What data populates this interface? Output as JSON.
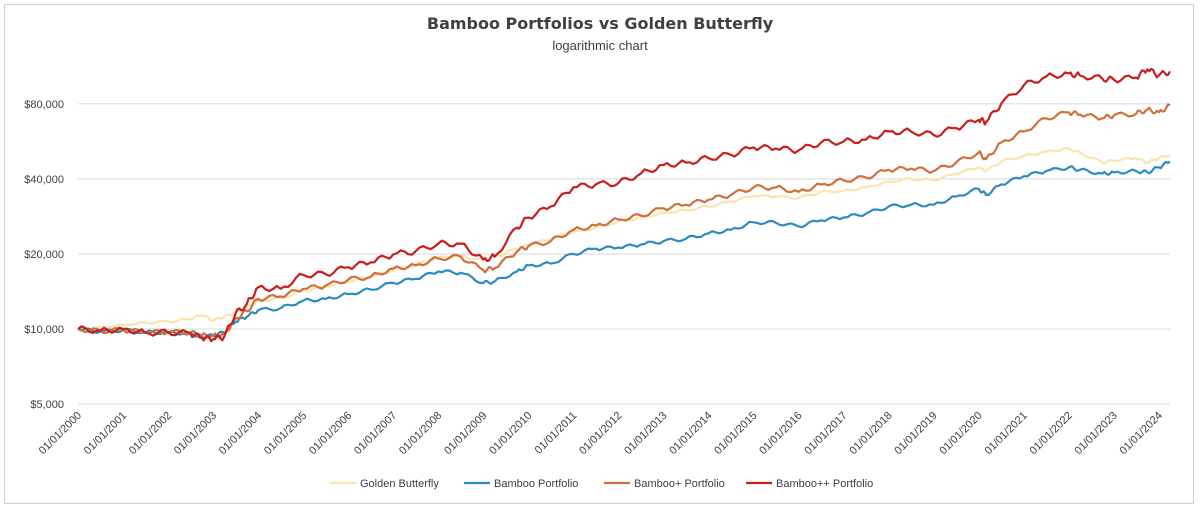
{
  "chart_data": {
    "type": "line",
    "title": "Bamboo Portfolios vs Golden Butterfly",
    "subtitle": "logarithmic chart",
    "xlabel": "",
    "ylabel": "",
    "y_scale": "log",
    "ylim": [
      5000,
      120000
    ],
    "xlim": [
      "2000-01-01",
      "2024-04-01"
    ],
    "grid": "horizontal",
    "legend_position": "bottom",
    "y_ticks": [
      {
        "value": 5000,
        "label": "$5,000"
      },
      {
        "value": 10000,
        "label": "$10,000"
      },
      {
        "value": 20000,
        "label": "$20,000"
      },
      {
        "value": 40000,
        "label": "$40,000"
      },
      {
        "value": 80000,
        "label": "$80,000"
      }
    ],
    "x_ticks": [
      "01/01/2000",
      "01/01/2001",
      "01/01/2002",
      "01/01/2003",
      "01/01/2004",
      "01/01/2005",
      "01/01/2006",
      "01/01/2007",
      "01/01/2008",
      "01/01/2009",
      "01/01/2010",
      "01/01/2011",
      "01/01/2012",
      "01/01/2013",
      "01/01/2014",
      "01/01/2015",
      "01/01/2016",
      "01/01/2017",
      "01/01/2018",
      "01/01/2019",
      "01/01/2020",
      "01/01/2021",
      "01/01/2022",
      "01/01/2023",
      "01/01/2024"
    ],
    "series": [
      {
        "name": "Golden Butterfly",
        "color": "#f8e5b0",
        "points": [
          [
            "2000-01-01",
            10000
          ],
          [
            "2000-07-01",
            10150
          ],
          [
            "2001-01-01",
            10400
          ],
          [
            "2001-07-01",
            10600
          ],
          [
            "2002-01-01",
            10700
          ],
          [
            "2002-07-01",
            10950
          ],
          [
            "2002-10-01",
            11400
          ],
          [
            "2003-01-01",
            10800
          ],
          [
            "2003-04-01",
            11200
          ],
          [
            "2003-07-01",
            11600
          ],
          [
            "2003-10-01",
            12300
          ],
          [
            "2004-01-01",
            12900
          ],
          [
            "2004-07-01",
            13300
          ],
          [
            "2005-01-01",
            14200
          ],
          [
            "2005-07-01",
            14800
          ],
          [
            "2006-01-01",
            15500
          ],
          [
            "2006-07-01",
            16200
          ],
          [
            "2007-01-01",
            17200
          ],
          [
            "2007-07-01",
            18100
          ],
          [
            "2008-01-01",
            19300
          ],
          [
            "2008-07-01",
            19700
          ],
          [
            "2009-01-01",
            18800
          ],
          [
            "2009-04-01",
            19500
          ],
          [
            "2009-10-01",
            21000
          ],
          [
            "2010-01-01",
            21700
          ],
          [
            "2010-07-01",
            23000
          ],
          [
            "2011-01-01",
            24500
          ],
          [
            "2011-07-01",
            25500
          ],
          [
            "2012-01-01",
            27000
          ],
          [
            "2012-07-01",
            28000
          ],
          [
            "2013-01-01",
            29200
          ],
          [
            "2013-07-01",
            30000
          ],
          [
            "2014-01-01",
            31000
          ],
          [
            "2014-07-01",
            32500
          ],
          [
            "2015-01-01",
            34200
          ],
          [
            "2015-07-01",
            34000
          ],
          [
            "2016-01-01",
            33500
          ],
          [
            "2016-07-01",
            35500
          ],
          [
            "2017-01-01",
            35800
          ],
          [
            "2017-07-01",
            37000
          ],
          [
            "2018-01-01",
            39000
          ],
          [
            "2018-07-01",
            40000
          ],
          [
            "2019-01-01",
            39500
          ],
          [
            "2019-07-01",
            42000
          ],
          [
            "2020-01-01",
            44500
          ],
          [
            "2020-03-01",
            43000
          ],
          [
            "2020-07-01",
            47000
          ],
          [
            "2021-01-01",
            49500
          ],
          [
            "2021-07-01",
            51500
          ],
          [
            "2022-01-01",
            53000
          ],
          [
            "2022-04-01",
            51000
          ],
          [
            "2022-10-01",
            46500
          ],
          [
            "2023-01-01",
            47500
          ],
          [
            "2023-07-01",
            48500
          ],
          [
            "2023-10-01",
            46500
          ],
          [
            "2024-01-01",
            48500
          ],
          [
            "2024-04-01",
            50000
          ]
        ]
      },
      {
        "name": "Bamboo Portfolio",
        "color": "#2e8bc0",
        "points": [
          [
            "2000-01-01",
            10000
          ],
          [
            "2000-07-01",
            9750
          ],
          [
            "2001-01-01",
            9900
          ],
          [
            "2001-07-01",
            9700
          ],
          [
            "2002-01-01",
            9700
          ],
          [
            "2002-07-01",
            9600
          ],
          [
            "2002-10-01",
            9300
          ],
          [
            "2003-01-01",
            9400
          ],
          [
            "2003-04-01",
            9700
          ],
          [
            "2003-07-01",
            10700
          ],
          [
            "2003-10-01",
            11200
          ],
          [
            "2004-01-01",
            11900
          ],
          [
            "2004-07-01",
            12100
          ],
          [
            "2005-01-01",
            13000
          ],
          [
            "2005-07-01",
            13200
          ],
          [
            "2006-01-01",
            13800
          ],
          [
            "2006-07-01",
            14400
          ],
          [
            "2007-01-01",
            15300
          ],
          [
            "2007-07-01",
            15900
          ],
          [
            "2008-01-01",
            17000
          ],
          [
            "2008-07-01",
            16800
          ],
          [
            "2009-01-01",
            15300
          ],
          [
            "2009-04-01",
            15500
          ],
          [
            "2009-10-01",
            17000
          ],
          [
            "2010-01-01",
            18000
          ],
          [
            "2010-07-01",
            18300
          ],
          [
            "2011-01-01",
            20000
          ],
          [
            "2011-07-01",
            21000
          ],
          [
            "2012-01-01",
            21200
          ],
          [
            "2012-07-01",
            21800
          ],
          [
            "2013-01-01",
            22500
          ],
          [
            "2013-07-01",
            23000
          ],
          [
            "2014-01-01",
            24200
          ],
          [
            "2014-07-01",
            25000
          ],
          [
            "2015-01-01",
            26800
          ],
          [
            "2015-07-01",
            26700
          ],
          [
            "2016-01-01",
            25800
          ],
          [
            "2016-07-01",
            27300
          ],
          [
            "2017-01-01",
            28000
          ],
          [
            "2017-07-01",
            29000
          ],
          [
            "2018-01-01",
            31000
          ],
          [
            "2018-07-01",
            31500
          ],
          [
            "2019-01-01",
            31500
          ],
          [
            "2019-07-01",
            34000
          ],
          [
            "2020-01-01",
            36500
          ],
          [
            "2020-03-01",
            34500
          ],
          [
            "2020-07-01",
            38000
          ],
          [
            "2021-01-01",
            41000
          ],
          [
            "2021-07-01",
            43000
          ],
          [
            "2022-01-01",
            44500
          ],
          [
            "2022-04-01",
            43500
          ],
          [
            "2022-10-01",
            42000
          ],
          [
            "2023-01-01",
            42500
          ],
          [
            "2023-07-01",
            43000
          ],
          [
            "2023-10-01",
            42500
          ],
          [
            "2024-01-01",
            44500
          ],
          [
            "2024-04-01",
            47000
          ]
        ]
      },
      {
        "name": "Bamboo+ Portfolio",
        "color": "#d0703c",
        "points": [
          [
            "2000-01-01",
            10000
          ],
          [
            "2000-07-01",
            9800
          ],
          [
            "2001-01-01",
            9900
          ],
          [
            "2001-07-01",
            9700
          ],
          [
            "2002-01-01",
            9700
          ],
          [
            "2002-07-01",
            9700
          ],
          [
            "2002-10-01",
            9400
          ],
          [
            "2003-01-01",
            9400
          ],
          [
            "2003-04-01",
            9500
          ],
          [
            "2003-07-01",
            11000
          ],
          [
            "2003-10-01",
            11800
          ],
          [
            "2004-01-01",
            13200
          ],
          [
            "2004-07-01",
            13500
          ],
          [
            "2005-01-01",
            14500
          ],
          [
            "2005-07-01",
            14900
          ],
          [
            "2006-01-01",
            15800
          ],
          [
            "2006-07-01",
            16200
          ],
          [
            "2007-01-01",
            17500
          ],
          [
            "2007-07-01",
            18000
          ],
          [
            "2008-01-01",
            19200
          ],
          [
            "2008-07-01",
            19500
          ],
          [
            "2009-01-01",
            17200
          ],
          [
            "2009-04-01",
            17500
          ],
          [
            "2009-10-01",
            20500
          ],
          [
            "2010-01-01",
            21500
          ],
          [
            "2010-07-01",
            22500
          ],
          [
            "2011-01-01",
            25000
          ],
          [
            "2011-07-01",
            26000
          ],
          [
            "2012-01-01",
            27500
          ],
          [
            "2012-07-01",
            28500
          ],
          [
            "2013-01-01",
            30500
          ],
          [
            "2013-07-01",
            31500
          ],
          [
            "2014-01-01",
            33000
          ],
          [
            "2014-07-01",
            34500
          ],
          [
            "2015-01-01",
            37000
          ],
          [
            "2015-07-01",
            37000
          ],
          [
            "2016-01-01",
            35500
          ],
          [
            "2016-07-01",
            38000
          ],
          [
            "2017-01-01",
            39500
          ],
          [
            "2017-07-01",
            40500
          ],
          [
            "2018-01-01",
            43500
          ],
          [
            "2018-07-01",
            44000
          ],
          [
            "2019-01-01",
            43000
          ],
          [
            "2019-07-01",
            46500
          ],
          [
            "2020-01-01",
            51000
          ],
          [
            "2020-03-01",
            48000
          ],
          [
            "2020-07-01",
            56000
          ],
          [
            "2021-01-01",
            62000
          ],
          [
            "2021-07-01",
            70000
          ],
          [
            "2022-01-01",
            74000
          ],
          [
            "2022-04-01",
            72500
          ],
          [
            "2022-10-01",
            70000
          ],
          [
            "2023-01-01",
            72000
          ],
          [
            "2023-07-01",
            73000
          ],
          [
            "2023-10-01",
            76000
          ],
          [
            "2024-01-01",
            74000
          ],
          [
            "2024-04-01",
            79000
          ]
        ]
      },
      {
        "name": "Bamboo++ Portfolio",
        "color": "#c81e1e",
        "points": [
          [
            "2000-01-01",
            10000
          ],
          [
            "2000-07-01",
            9850
          ],
          [
            "2001-01-01",
            10000
          ],
          [
            "2001-07-01",
            9650
          ],
          [
            "2002-01-01",
            9700
          ],
          [
            "2002-07-01",
            9600
          ],
          [
            "2002-10-01",
            9200
          ],
          [
            "2003-01-01",
            9100
          ],
          [
            "2003-04-01",
            9300
          ],
          [
            "2003-07-01",
            11500
          ],
          [
            "2003-10-01",
            12600
          ],
          [
            "2004-01-01",
            14700
          ],
          [
            "2004-07-01",
            14500
          ],
          [
            "2005-01-01",
            16500
          ],
          [
            "2005-07-01",
            16600
          ],
          [
            "2006-01-01",
            17700
          ],
          [
            "2006-07-01",
            18500
          ],
          [
            "2007-01-01",
            19900
          ],
          [
            "2007-07-01",
            20500
          ],
          [
            "2008-01-01",
            22000
          ],
          [
            "2008-07-01",
            22000
          ],
          [
            "2009-01-01",
            19000
          ],
          [
            "2009-04-01",
            19500
          ],
          [
            "2009-10-01",
            25500
          ],
          [
            "2010-01-01",
            28000
          ],
          [
            "2010-07-01",
            31000
          ],
          [
            "2011-01-01",
            37000
          ],
          [
            "2011-07-01",
            38000
          ],
          [
            "2012-01-01",
            38500
          ],
          [
            "2012-07-01",
            42000
          ],
          [
            "2013-01-01",
            45500
          ],
          [
            "2013-07-01",
            46500
          ],
          [
            "2014-01-01",
            48500
          ],
          [
            "2014-07-01",
            50000
          ],
          [
            "2015-01-01",
            53500
          ],
          [
            "2015-07-01",
            53000
          ],
          [
            "2016-01-01",
            52000
          ],
          [
            "2016-07-01",
            56000
          ],
          [
            "2017-01-01",
            56500
          ],
          [
            "2017-07-01",
            57500
          ],
          [
            "2018-01-01",
            62000
          ],
          [
            "2018-07-01",
            62000
          ],
          [
            "2019-01-01",
            60000
          ],
          [
            "2019-07-01",
            64000
          ],
          [
            "2020-01-01",
            69000
          ],
          [
            "2020-03-01",
            67500
          ],
          [
            "2020-07-01",
            80000
          ],
          [
            "2021-01-01",
            95000
          ],
          [
            "2021-07-01",
            103000
          ],
          [
            "2022-01-01",
            106000
          ],
          [
            "2022-04-01",
            104000
          ],
          [
            "2022-10-01",
            101000
          ],
          [
            "2023-01-01",
            100000
          ],
          [
            "2023-07-01",
            102000
          ],
          [
            "2023-10-01",
            110000
          ],
          [
            "2024-01-01",
            104000
          ],
          [
            "2024-04-01",
            108000
          ]
        ]
      }
    ]
  }
}
